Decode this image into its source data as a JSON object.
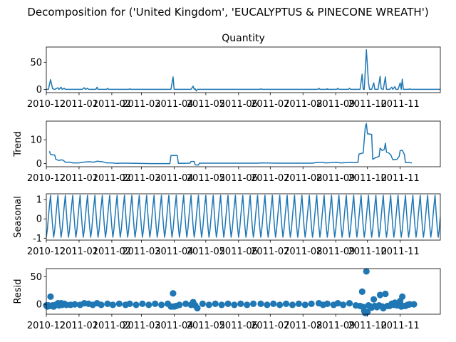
{
  "suptitle": "Decomposition for ('United Kingdom', 'EUCALYPTUS & PINECONE  WREATH')",
  "line_color": "#1f77b4",
  "chart_data": [
    {
      "type": "line",
      "title": "Quantity",
      "ylabel": "",
      "ylim": [
        -6,
        78
      ],
      "yticks": [
        0,
        50
      ],
      "xlim": [
        "2010-12-01",
        "2011-12-09"
      ],
      "xticks": [
        "2010-12",
        "2011-01",
        "2011-02",
        "2011-03",
        "2011-04",
        "2011-05",
        "2011-06",
        "2011-07",
        "2011-08",
        "2011-09",
        "2011-10",
        "2011-11"
      ],
      "points": [
        [
          "2010-12-01",
          0
        ],
        [
          "2010-12-03",
          0
        ],
        [
          "2010-12-05",
          18
        ],
        [
          "2010-12-07",
          1
        ],
        [
          "2010-12-09",
          0
        ],
        [
          "2010-12-12",
          3
        ],
        [
          "2010-12-13",
          0
        ],
        [
          "2010-12-15",
          4
        ],
        [
          "2010-12-16",
          0
        ],
        [
          "2010-12-18",
          2
        ],
        [
          "2010-12-19",
          0
        ],
        [
          "2011-01-04",
          0
        ],
        [
          "2011-01-06",
          3
        ],
        [
          "2011-01-07",
          0
        ],
        [
          "2011-01-09",
          2
        ],
        [
          "2011-01-10",
          0
        ],
        [
          "2011-01-17",
          0
        ],
        [
          "2011-01-18",
          4
        ],
        [
          "2011-01-19",
          0
        ],
        [
          "2011-01-27",
          0
        ],
        [
          "2011-01-28",
          2
        ],
        [
          "2011-01-29",
          0
        ],
        [
          "2011-02-17",
          0
        ],
        [
          "2011-02-18",
          1
        ],
        [
          "2011-02-19",
          0
        ],
        [
          "2011-03-29",
          0
        ],
        [
          "2011-03-31",
          23
        ],
        [
          "2011-04-01",
          0
        ],
        [
          "2011-04-17",
          0
        ],
        [
          "2011-04-19",
          6
        ],
        [
          "2011-04-20",
          0
        ],
        [
          "2011-04-21",
          1
        ],
        [
          "2011-04-22",
          -3
        ],
        [
          "2011-04-23",
          0
        ],
        [
          "2011-06-21",
          0
        ],
        [
          "2011-06-22",
          1
        ],
        [
          "2011-06-23",
          0
        ],
        [
          "2011-08-15",
          0
        ],
        [
          "2011-08-16",
          2
        ],
        [
          "2011-08-17",
          0
        ],
        [
          "2011-08-23",
          0
        ],
        [
          "2011-08-24",
          1
        ],
        [
          "2011-08-25",
          0
        ],
        [
          "2011-09-02",
          0
        ],
        [
          "2011-09-03",
          2
        ],
        [
          "2011-09-04",
          0
        ],
        [
          "2011-09-13",
          0
        ],
        [
          "2011-09-14",
          2
        ],
        [
          "2011-09-15",
          0
        ],
        [
          "2011-09-24",
          0
        ],
        [
          "2011-09-26",
          28
        ],
        [
          "2011-09-27",
          0
        ],
        [
          "2011-09-28",
          0
        ],
        [
          "2011-09-30",
          73
        ],
        [
          "2011-10-02",
          12
        ],
        [
          "2011-10-03",
          0
        ],
        [
          "2011-10-05",
          0
        ],
        [
          "2011-10-07",
          12
        ],
        [
          "2011-10-08",
          0
        ],
        [
          "2011-10-11",
          0
        ],
        [
          "2011-10-13",
          24
        ],
        [
          "2011-10-14",
          1
        ],
        [
          "2011-10-16",
          0
        ],
        [
          "2011-10-18",
          23
        ],
        [
          "2011-10-19",
          0
        ],
        [
          "2011-10-22",
          0
        ],
        [
          "2011-10-24",
          4
        ],
        [
          "2011-10-25",
          0
        ],
        [
          "2011-10-27",
          5
        ],
        [
          "2011-10-28",
          0
        ],
        [
          "2011-10-30",
          0
        ],
        [
          "2011-11-01",
          12
        ],
        [
          "2011-11-02",
          0
        ],
        [
          "2011-11-03",
          19
        ],
        [
          "2011-11-04",
          0
        ],
        [
          "2011-11-09",
          0
        ],
        [
          "2011-11-10",
          1
        ],
        [
          "2011-11-11",
          0
        ],
        [
          "2011-12-09",
          0
        ]
      ]
    },
    {
      "type": "line",
      "title": "",
      "ylabel": "Trend",
      "ylim": [
        -1.3,
        17.8
      ],
      "yticks": [
        0,
        10
      ],
      "xlim": [
        "2010-12-01",
        "2011-12-09"
      ],
      "xticks": [
        "2010-12",
        "2011-01",
        "2011-02",
        "2011-03",
        "2011-04",
        "2011-05",
        "2011-06",
        "2011-07",
        "2011-08",
        "2011-09",
        "2011-10",
        "2011-11"
      ],
      "points": [
        [
          "2010-12-04",
          5.2
        ],
        [
          "2010-12-05",
          3.8
        ],
        [
          "2010-12-07",
          3.7
        ],
        [
          "2010-12-09",
          3.6
        ],
        [
          "2010-12-10",
          1.8
        ],
        [
          "2010-12-13",
          1.3
        ],
        [
          "2010-12-15",
          1.6
        ],
        [
          "2010-12-17",
          1.4
        ],
        [
          "2010-12-19",
          0.6
        ],
        [
          "2010-12-23",
          0.6
        ],
        [
          "2010-12-26",
          0.3
        ],
        [
          "2011-01-01",
          0.3
        ],
        [
          "2011-01-05",
          0.6
        ],
        [
          "2011-01-10",
          0.8
        ],
        [
          "2011-01-15",
          0.6
        ],
        [
          "2011-01-18",
          1.0
        ],
        [
          "2011-01-23",
          0.8
        ],
        [
          "2011-01-27",
          0.3
        ],
        [
          "2011-02-01",
          0.3
        ],
        [
          "2011-02-06",
          0.1
        ],
        [
          "2011-02-10",
          0.2
        ],
        [
          "2011-02-15",
          0.2
        ],
        [
          "2011-03-10",
          0.0
        ],
        [
          "2011-03-28",
          0.0
        ],
        [
          "2011-03-29",
          3.4
        ],
        [
          "2011-04-04",
          3.4
        ],
        [
          "2011-04-05",
          0.1
        ],
        [
          "2011-04-16",
          0.2
        ],
        [
          "2011-04-17",
          0.9
        ],
        [
          "2011-04-20",
          0.9
        ],
        [
          "2011-04-21",
          -0.5
        ],
        [
          "2011-04-24",
          -0.6
        ],
        [
          "2011-04-25",
          0.2
        ],
        [
          "2011-06-01",
          0.2
        ],
        [
          "2011-06-20",
          0.2
        ],
        [
          "2011-06-22",
          0.3
        ],
        [
          "2011-07-05",
          0.2
        ],
        [
          "2011-08-10",
          0.2
        ],
        [
          "2011-08-14",
          0.5
        ],
        [
          "2011-08-20",
          0.5
        ],
        [
          "2011-08-22",
          0.3
        ],
        [
          "2011-09-02",
          0.5
        ],
        [
          "2011-09-06",
          0.3
        ],
        [
          "2011-09-14",
          0.5
        ],
        [
          "2011-09-18",
          0.4
        ],
        [
          "2011-09-22",
          0.5
        ],
        [
          "2011-09-23",
          4.0
        ],
        [
          "2011-09-27",
          4.5
        ],
        [
          "2011-09-29",
          15.5
        ],
        [
          "2011-09-30",
          16.8
        ],
        [
          "2011-10-01",
          12.5
        ],
        [
          "2011-10-03",
          12.4
        ],
        [
          "2011-10-05",
          12.2
        ],
        [
          "2011-10-06",
          1.8
        ],
        [
          "2011-10-09",
          2.6
        ],
        [
          "2011-10-12",
          3.0
        ],
        [
          "2011-10-13",
          6.5
        ],
        [
          "2011-10-15",
          5.5
        ],
        [
          "2011-10-17",
          6.0
        ],
        [
          "2011-10-18",
          8.6
        ],
        [
          "2011-10-19",
          4.8
        ],
        [
          "2011-10-21",
          4.5
        ],
        [
          "2011-10-23",
          3.8
        ],
        [
          "2011-10-25",
          1.6
        ],
        [
          "2011-10-29",
          1.8
        ],
        [
          "2011-10-31",
          3.0
        ],
        [
          "2011-11-01",
          5.5
        ],
        [
          "2011-11-03",
          5.6
        ],
        [
          "2011-11-05",
          3.8
        ],
        [
          "2011-11-06",
          0.4
        ],
        [
          "2011-11-10",
          0.4
        ],
        [
          "2011-11-12",
          0.3
        ]
      ]
    },
    {
      "type": "line",
      "title": "",
      "ylabel": "Seasonal",
      "ylim": [
        -1.1,
        1.3
      ],
      "yticks": [
        -1,
        0,
        1
      ],
      "xlim": [
        "2010-12-01",
        "2011-12-09"
      ],
      "xticks": [
        "2010-12",
        "2011-01",
        "2011-02",
        "2011-03",
        "2011-04",
        "2011-05",
        "2011-06",
        "2011-07",
        "2011-08",
        "2011-09",
        "2011-10",
        "2011-11"
      ],
      "start": "2010-12-01",
      "step_days": 1,
      "count": 374,
      "period_pattern": [
        -0.95,
        -0.55,
        0.1,
        0.7,
        1.22,
        0.35,
        -0.4
      ]
    },
    {
      "type": "scatter",
      "title": "",
      "ylabel": "Resid",
      "ylim": [
        -18,
        65
      ],
      "yticks": [
        0,
        50
      ],
      "xlim": [
        "2010-12-01",
        "2011-12-09"
      ],
      "xticks": [
        "2010-12",
        "2011-01",
        "2011-02",
        "2011-03",
        "2011-04",
        "2011-05",
        "2011-06",
        "2011-07",
        "2011-08",
        "2011-09",
        "2011-10",
        "2011-11"
      ],
      "points": [
        [
          "2010-12-01",
          -2
        ],
        [
          "2010-12-02",
          -4
        ],
        [
          "2010-12-03",
          -2
        ],
        [
          "2010-12-04",
          -3
        ],
        [
          "2010-12-05",
          14
        ],
        [
          "2010-12-06",
          -3
        ],
        [
          "2010-12-07",
          -2
        ],
        [
          "2010-12-08",
          -4
        ],
        [
          "2010-12-09",
          -2
        ],
        [
          "2010-12-10",
          -1
        ],
        [
          "2010-12-12",
          2
        ],
        [
          "2010-12-13",
          -2
        ],
        [
          "2010-12-15",
          2
        ],
        [
          "2010-12-16",
          -1
        ],
        [
          "2010-12-18",
          1
        ],
        [
          "2010-12-20",
          -1
        ],
        [
          "2010-12-24",
          -1
        ],
        [
          "2010-12-28",
          0
        ],
        [
          "2011-01-02",
          -1
        ],
        [
          "2011-01-06",
          2
        ],
        [
          "2011-01-10",
          1
        ],
        [
          "2011-01-14",
          -1
        ],
        [
          "2011-01-18",
          2
        ],
        [
          "2011-01-22",
          -1
        ],
        [
          "2011-01-28",
          1
        ],
        [
          "2011-02-02",
          -1
        ],
        [
          "2011-02-08",
          1
        ],
        [
          "2011-02-14",
          -1
        ],
        [
          "2011-02-18",
          1
        ],
        [
          "2011-02-24",
          -1
        ],
        [
          "2011-03-02",
          1
        ],
        [
          "2011-03-08",
          -1
        ],
        [
          "2011-03-14",
          1
        ],
        [
          "2011-03-20",
          -1
        ],
        [
          "2011-03-26",
          1
        ],
        [
          "2011-03-29",
          -4
        ],
        [
          "2011-03-31",
          20
        ],
        [
          "2011-04-01",
          -4
        ],
        [
          "2011-04-03",
          -3
        ],
        [
          "2011-04-06",
          -1
        ],
        [
          "2011-04-12",
          1
        ],
        [
          "2011-04-17",
          -1
        ],
        [
          "2011-04-19",
          4
        ],
        [
          "2011-04-21",
          -2
        ],
        [
          "2011-04-23",
          -7
        ],
        [
          "2011-04-28",
          1
        ],
        [
          "2011-05-04",
          -1
        ],
        [
          "2011-05-10",
          1
        ],
        [
          "2011-05-16",
          -1
        ],
        [
          "2011-05-22",
          1
        ],
        [
          "2011-05-28",
          -1
        ],
        [
          "2011-06-03",
          1
        ],
        [
          "2011-06-09",
          -1
        ],
        [
          "2011-06-15",
          1
        ],
        [
          "2011-06-22",
          1
        ],
        [
          "2011-06-28",
          -1
        ],
        [
          "2011-07-04",
          1
        ],
        [
          "2011-07-10",
          -1
        ],
        [
          "2011-07-16",
          1
        ],
        [
          "2011-07-22",
          -1
        ],
        [
          "2011-07-28",
          1
        ],
        [
          "2011-08-03",
          -1
        ],
        [
          "2011-08-09",
          1
        ],
        [
          "2011-08-16",
          2
        ],
        [
          "2011-08-20",
          -1
        ],
        [
          "2011-08-24",
          1
        ],
        [
          "2011-08-30",
          -1
        ],
        [
          "2011-09-03",
          2
        ],
        [
          "2011-09-08",
          -1
        ],
        [
          "2011-09-14",
          2
        ],
        [
          "2011-09-20",
          -2
        ],
        [
          "2011-09-24",
          -3
        ],
        [
          "2011-09-26",
          23
        ],
        [
          "2011-09-27",
          -5
        ],
        [
          "2011-09-28",
          -12
        ],
        [
          "2011-09-29",
          -16
        ],
        [
          "2011-09-30",
          60
        ],
        [
          "2011-10-01",
          -14
        ],
        [
          "2011-10-02",
          -2
        ],
        [
          "2011-10-04",
          -4
        ],
        [
          "2011-10-05",
          -6
        ],
        [
          "2011-10-07",
          9
        ],
        [
          "2011-10-08",
          -3
        ],
        [
          "2011-10-10",
          -5
        ],
        [
          "2011-10-12",
          -2
        ],
        [
          "2011-10-13",
          17
        ],
        [
          "2011-10-15",
          -4
        ],
        [
          "2011-10-16",
          -7
        ],
        [
          "2011-10-18",
          19
        ],
        [
          "2011-10-20",
          -3
        ],
        [
          "2011-10-22",
          -3
        ],
        [
          "2011-10-24",
          1
        ],
        [
          "2011-10-26",
          -1
        ],
        [
          "2011-10-27",
          3
        ],
        [
          "2011-10-29",
          -2
        ],
        [
          "2011-11-01",
          6
        ],
        [
          "2011-11-02",
          -4
        ],
        [
          "2011-11-03",
          14
        ],
        [
          "2011-11-04",
          -3
        ],
        [
          "2011-11-06",
          -3
        ],
        [
          "2011-11-08",
          -1
        ],
        [
          "2011-11-10",
          0
        ],
        [
          "2011-11-14",
          0
        ]
      ]
    }
  ]
}
